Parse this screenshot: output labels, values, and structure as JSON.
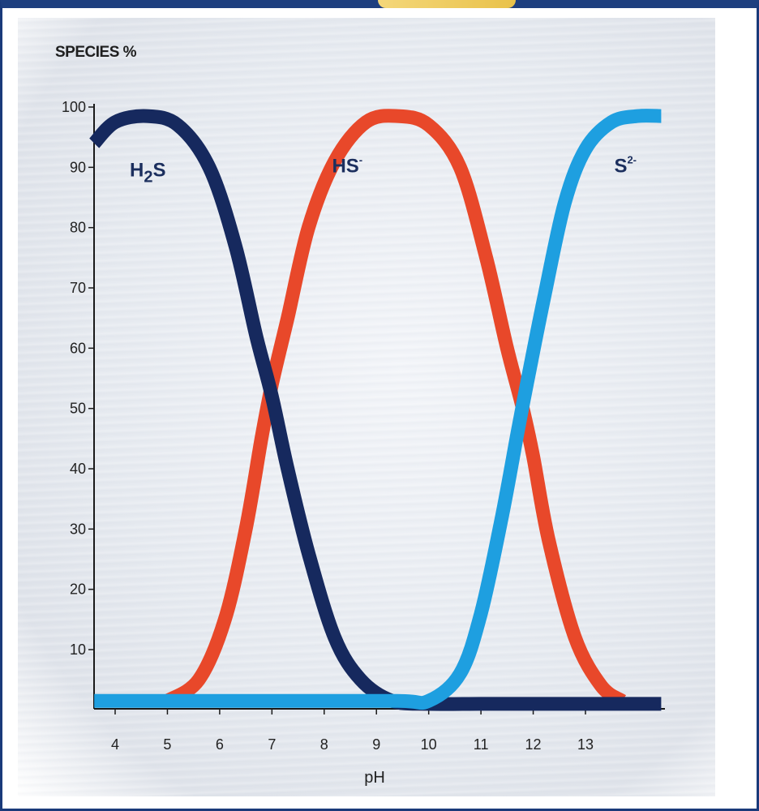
{
  "chart_data": {
    "type": "line",
    "ylabel": "SPECIES %",
    "xlabel": "pH",
    "xlim": [
      3.6,
      14.45
    ],
    "ylim": [
      0,
      100
    ],
    "x_ticks": [
      4,
      5,
      6,
      7,
      8,
      9,
      10,
      11,
      12,
      13
    ],
    "y_ticks": [
      10,
      20,
      30,
      40,
      50,
      60,
      70,
      80,
      90,
      100
    ],
    "grid": false,
    "legend": "inline labels",
    "series": [
      {
        "name": "H2S",
        "label_main": "H",
        "label_sub": "2",
        "label_tail": "S",
        "color": "#16295e",
        "x": [
          3.6,
          4.0,
          4.6,
          5.2,
          5.8,
          6.3,
          6.7,
          7.0,
          7.3,
          7.7,
          8.2,
          8.7,
          9.3,
          10.0,
          11.0,
          12.0,
          13.0,
          14.45
        ],
        "values": [
          94,
          97.5,
          98.5,
          97,
          90,
          77,
          62,
          52,
          40,
          26,
          12,
          5,
          1.5,
          1,
          1,
          1,
          1,
          1
        ]
      },
      {
        "name": "HS-",
        "label_main": "HS",
        "label_sup": "-",
        "color": "#e8482a",
        "x": [
          5.0,
          5.6,
          6.1,
          6.5,
          6.8,
          7.0,
          7.3,
          7.7,
          8.2,
          8.8,
          9.4,
          10.0,
          10.6,
          11.1,
          11.5,
          11.8,
          12.0,
          12.3,
          12.8,
          13.3,
          13.7
        ],
        "values": [
          1.5,
          5,
          15,
          30,
          45,
          54,
          65,
          80,
          91,
          97.5,
          98.5,
          97,
          90,
          75,
          60,
          50,
          42,
          28,
          12,
          4,
          1.5
        ]
      },
      {
        "name": "S2-",
        "label_main": "S",
        "label_sup": "2-",
        "color": "#1e9fe0",
        "x": [
          3.6,
          5.0,
          7.0,
          9.4,
          10.0,
          10.6,
          11.0,
          11.4,
          11.7,
          11.9,
          12.2,
          12.6,
          13.0,
          13.5,
          14.0,
          14.45
        ],
        "values": [
          1.5,
          1.5,
          1.5,
          1.5,
          1.5,
          6,
          16,
          32,
          46,
          55,
          68,
          84,
          93,
          97.5,
          98.5,
          98.5
        ]
      }
    ]
  }
}
